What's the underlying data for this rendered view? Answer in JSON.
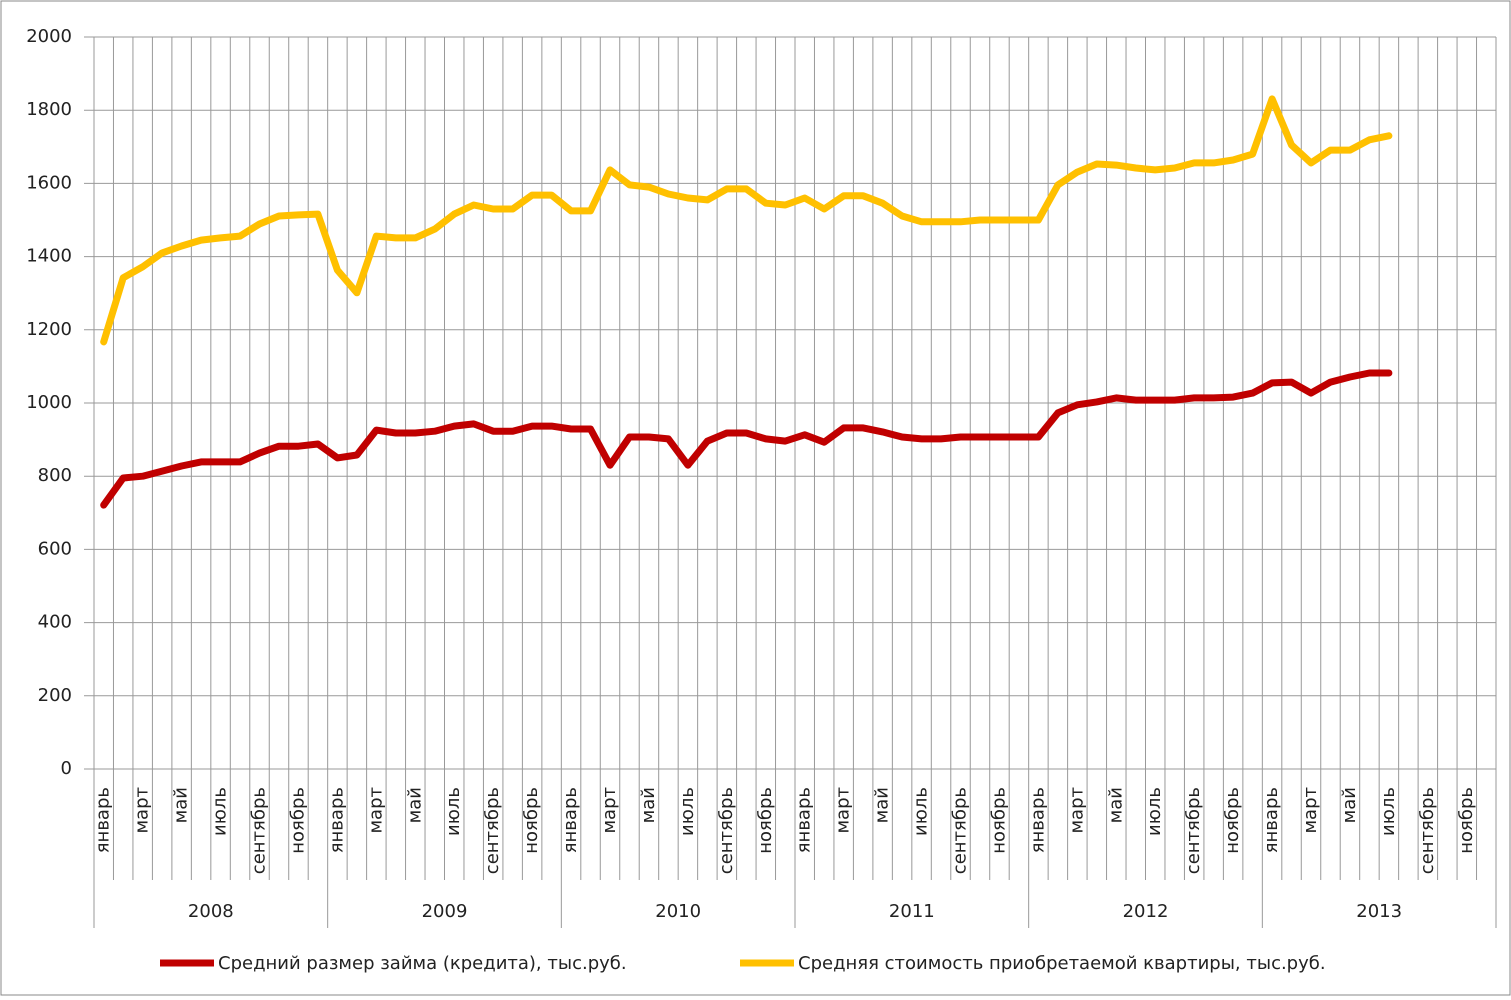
{
  "chart_data": {
    "type": "line",
    "categories": [
      "январь",
      null,
      "март",
      null,
      "май",
      null,
      "июль",
      null,
      "сентябрь",
      null,
      "ноябрь",
      null,
      "январь",
      null,
      "март",
      null,
      "май",
      null,
      "июль",
      null,
      "сентябрь",
      null,
      "ноябрь",
      null,
      "январь",
      null,
      "март",
      null,
      "май",
      null,
      "июль",
      null,
      "сентябрь",
      null,
      "ноябрь",
      null,
      "январь",
      null,
      "март",
      null,
      "май",
      null,
      "июль",
      null,
      "сентябрь",
      null,
      "ноябрь",
      null,
      "январь",
      null,
      "март",
      null,
      "май",
      null,
      "июль",
      null,
      "сентябрь",
      null,
      "ноябрь",
      null,
      "январь",
      null,
      "март",
      null,
      "май",
      null,
      "июль",
      null,
      "сентябрь",
      null,
      "ноябрь",
      null
    ],
    "groups": [
      "2008",
      "2009",
      "2010",
      "2011",
      "2012",
      "2013"
    ],
    "series": [
      {
        "name": "Средний  размер займа (кредита),  тыс.руб.",
        "color": "#c00000",
        "values": [
          721,
          795,
          800,
          814,
          828,
          839,
          839,
          839,
          863,
          882,
          882,
          888,
          850,
          858,
          926,
          918,
          918,
          923,
          937,
          943,
          923,
          923,
          937,
          937,
          929,
          929,
          830,
          907,
          907,
          902,
          830,
          896,
          918,
          918,
          902,
          896,
          913,
          893,
          932,
          932,
          921,
          907,
          902,
          902,
          907,
          907,
          907,
          907,
          907,
          973,
          995,
          1003,
          1014,
          1008,
          1008,
          1008,
          1014,
          1014,
          1016,
          1027,
          1055,
          1057,
          1027,
          1057,
          1071,
          1082,
          1082,
          null,
          null,
          null,
          null,
          null
        ]
      },
      {
        "name": "Средняя  стоимость приобретаемой  квартиры, тыс.руб.",
        "color": "#ffc000",
        "values": [
          1167,
          1342,
          1372,
          1410,
          1429,
          1445,
          1451,
          1456,
          1489,
          1511,
          1514,
          1516,
          1363,
          1301,
          1456,
          1451,
          1451,
          1475,
          1516,
          1541,
          1530,
          1530,
          1568,
          1568,
          1525,
          1525,
          1637,
          1596,
          1590,
          1571,
          1560,
          1555,
          1585,
          1585,
          1546,
          1541,
          1560,
          1530,
          1566,
          1566,
          1546,
          1511,
          1495,
          1495,
          1495,
          1500,
          1500,
          1500,
          1500,
          1596,
          1631,
          1653,
          1650,
          1642,
          1637,
          1642,
          1656,
          1656,
          1664,
          1680,
          1831,
          1705,
          1656,
          1691,
          1691,
          1719,
          1730,
          null,
          null,
          null,
          null,
          null
        ]
      }
    ],
    "ylim": [
      0,
      2000
    ],
    "yticks": [
      0,
      200,
      400,
      600,
      800,
      1000,
      1200,
      1400,
      1600,
      1800,
      2000
    ],
    "grid": true,
    "legend": "bottom"
  }
}
